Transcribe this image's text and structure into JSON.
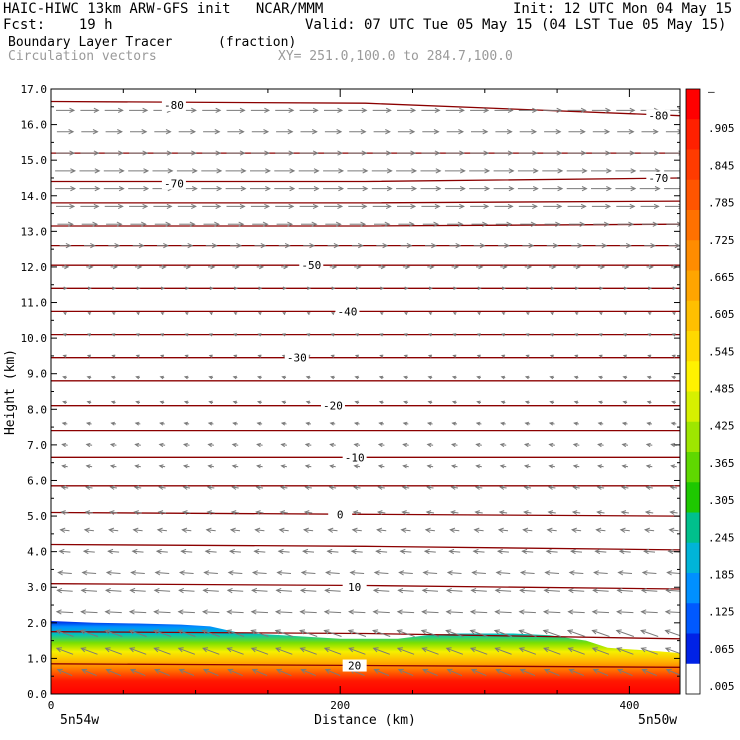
{
  "header": {
    "line1_left": "HAIC-HIWC 13km ARW-GFS init   NCAR/MMM",
    "line1_right": "Init: 12 UTC Mon 04 May 15",
    "line2_left": "Fcst:    19 h",
    "line2_right": "Valid: 07 UTC Tue 05 May 15 (04 LST Tue 05 May 15)",
    "line3_left": "Boundary Layer Tracer",
    "line3_units": "(fraction)",
    "line4_left": "Circulation vectors",
    "line4_right": "XY= 251.0,100.0 to 284.7,100.0"
  },
  "chart_data": {
    "type": "heatmap",
    "xlabel": "Distance (km)",
    "ylabel": "Height (km)",
    "xlim": [
      0,
      435
    ],
    "ylim": [
      0,
      17
    ],
    "x_ticks": [
      0,
      200,
      400
    ],
    "x_tick_labels": [
      "0",
      "200",
      "400"
    ],
    "y_ticks": [
      0,
      1,
      2,
      3,
      4,
      5,
      6,
      7,
      8,
      9,
      10,
      11,
      12,
      13,
      14,
      15,
      16,
      17
    ],
    "y_tick_labels": [
      "0.0",
      "1.0",
      "2.0",
      "3.0",
      "4.0",
      "5.0",
      "6.0",
      "7.0",
      "8.0",
      "9.0",
      "10.0",
      "11.0",
      "12.0",
      "13.0",
      "14.0",
      "15.0",
      "16.0",
      "17.0"
    ],
    "x_endpoint_labels": [
      "5n54w",
      "5n50w"
    ],
    "tracer_top_km": [
      [
        0,
        2.05
      ],
      [
        30,
        2.0
      ],
      [
        60,
        1.98
      ],
      [
        90,
        1.95
      ],
      [
        110,
        1.9
      ],
      [
        130,
        1.72
      ],
      [
        160,
        1.65
      ],
      [
        200,
        1.55
      ],
      [
        240,
        1.55
      ],
      [
        260,
        1.65
      ],
      [
        280,
        1.7
      ],
      [
        320,
        1.7
      ],
      [
        345,
        1.65
      ],
      [
        370,
        1.5
      ],
      [
        385,
        1.3
      ],
      [
        420,
        1.2
      ],
      [
        435,
        1.15
      ]
    ],
    "temperature_contours": [
      {
        "label": "-80",
        "z": [
          16.65,
          16.6,
          16.25
        ],
        "label_pos": [
          [
            85,
            16.55
          ],
          [
            420,
            16.25
          ]
        ]
      },
      {
        "label": "",
        "z": [
          15.2,
          15.2,
          15.2
        ],
        "label_pos": []
      },
      {
        "label": "-70",
        "z": [
          14.4,
          14.4,
          14.5
        ],
        "label_pos": [
          [
            85,
            14.35
          ],
          [
            420,
            14.5
          ]
        ]
      },
      {
        "label": "",
        "z": [
          13.8,
          13.8,
          13.85
        ],
        "label_pos": []
      },
      {
        "label": "",
        "z": [
          13.15,
          13.15,
          13.2
        ],
        "label_pos": []
      },
      {
        "label": "",
        "z": [
          12.6,
          12.6,
          12.6
        ],
        "label_pos": []
      },
      {
        "label": "-50",
        "z": [
          12.05,
          12.05,
          12.05
        ],
        "label_pos": [
          [
            180,
            12.05
          ]
        ]
      },
      {
        "label": "",
        "z": [
          11.4,
          11.4,
          11.4
        ],
        "label_pos": []
      },
      {
        "label": "-40",
        "z": [
          10.75,
          10.75,
          10.75
        ],
        "label_pos": [
          [
            205,
            10.75
          ]
        ]
      },
      {
        "label": "",
        "z": [
          10.1,
          10.1,
          10.1
        ],
        "label_pos": []
      },
      {
        "label": "-30",
        "z": [
          9.45,
          9.45,
          9.45
        ],
        "label_pos": [
          [
            170,
            9.45
          ]
        ]
      },
      {
        "label": "",
        "z": [
          8.8,
          8.8,
          8.8
        ],
        "label_pos": []
      },
      {
        "label": "-20",
        "z": [
          8.1,
          8.1,
          8.1
        ],
        "label_pos": [
          [
            195,
            8.1
          ]
        ]
      },
      {
        "label": "",
        "z": [
          7.4,
          7.4,
          7.4
        ],
        "label_pos": []
      },
      {
        "label": "-10",
        "z": [
          6.65,
          6.65,
          6.65
        ],
        "label_pos": [
          [
            210,
            6.65
          ]
        ]
      },
      {
        "label": "",
        "z": [
          5.85,
          5.85,
          5.85
        ],
        "label_pos": []
      },
      {
        "label": "0",
        "z": [
          5.1,
          5.05,
          5.0
        ],
        "label_pos": [
          [
            200,
            5.05
          ]
        ]
      },
      {
        "label": "",
        "z": [
          4.2,
          4.15,
          4.05
        ],
        "label_pos": []
      },
      {
        "label": "10",
        "z": [
          3.1,
          3.05,
          2.95
        ],
        "label_pos": [
          [
            210,
            3.0
          ]
        ]
      },
      {
        "label": "",
        "z": [
          1.75,
          1.7,
          1.55
        ],
        "label_pos": []
      },
      {
        "label": "20",
        "z": [
          0.85,
          0.8,
          0.75
        ],
        "label_pos": [
          [
            210,
            0.8
          ]
        ]
      }
    ],
    "vectors": [
      {
        "z": 16.4,
        "u": 1.0,
        "w": 0.0
      },
      {
        "z": 15.8,
        "u": 0.9,
        "w": 0.0
      },
      {
        "z": 15.2,
        "u": 1.0,
        "w": 0.0
      },
      {
        "z": 14.7,
        "u": 1.1,
        "w": 0.0
      },
      {
        "z": 14.2,
        "u": 1.1,
        "w": 0.0
      },
      {
        "z": 13.7,
        "u": 1.0,
        "w": 0.0
      },
      {
        "z": 13.2,
        "u": 0.85,
        "w": 0.0
      },
      {
        "z": 12.6,
        "u": 0.6,
        "w": 0.0
      },
      {
        "z": 12.0,
        "u": 0.35,
        "w": 0.0
      },
      {
        "z": 11.4,
        "u": 0.15,
        "w": 0.0
      },
      {
        "z": 10.7,
        "u": -0.1,
        "w": 0.05
      },
      {
        "z": 10.1,
        "u": -0.15,
        "w": 0.05
      },
      {
        "z": 9.5,
        "u": -0.15,
        "w": 0.05
      },
      {
        "z": 8.9,
        "u": -0.2,
        "w": 0.05
      },
      {
        "z": 8.2,
        "u": -0.2,
        "w": 0.05
      },
      {
        "z": 7.6,
        "u": -0.25,
        "w": 0.05
      },
      {
        "z": 7.0,
        "u": -0.3,
        "w": 0.05
      },
      {
        "z": 6.4,
        "u": -0.3,
        "w": 0.05
      },
      {
        "z": 5.8,
        "u": -0.35,
        "w": 0.05
      },
      {
        "z": 5.1,
        "u": -0.4,
        "w": 0.05
      },
      {
        "z": 4.6,
        "u": -0.5,
        "w": 0.05
      },
      {
        "z": 4.0,
        "u": -0.6,
        "w": 0.05
      },
      {
        "z": 3.4,
        "u": -0.75,
        "w": 0.05
      },
      {
        "z": 2.9,
        "u": -0.85,
        "w": 0.05
      },
      {
        "z": 2.3,
        "u": -0.9,
        "w": 0.05
      },
      {
        "z": 1.7,
        "u": -0.95,
        "w": 0.05
      },
      {
        "z": 1.2,
        "u": -0.9,
        "w": 0.05
      },
      {
        "z": 0.6,
        "u": -0.8,
        "w": 0.05
      }
    ],
    "colorbar": {
      "labels": [
        "–",
        ".905",
        ".845",
        ".785",
        ".725",
        ".665",
        ".605",
        ".545",
        ".485",
        ".425",
        ".365",
        ".305",
        ".245",
        ".185",
        ".125",
        ".065",
        ".005"
      ],
      "colors": [
        "#ff0000",
        "#ff2000",
        "#ff3b00",
        "#ff5500",
        "#ff7100",
        "#ff8c00",
        "#ffa500",
        "#ffbf00",
        "#ffd800",
        "#fff200",
        "#d6f000",
        "#9ee600",
        "#5fd800",
        "#1ec800",
        "#00c08c",
        "#00b4d8",
        "#0090ff",
        "#0059ff",
        "#0022e6",
        "#ffffff"
      ]
    },
    "contour_color": "#8b0000",
    "vector_color": "#7a7a7a",
    "grid": false
  }
}
